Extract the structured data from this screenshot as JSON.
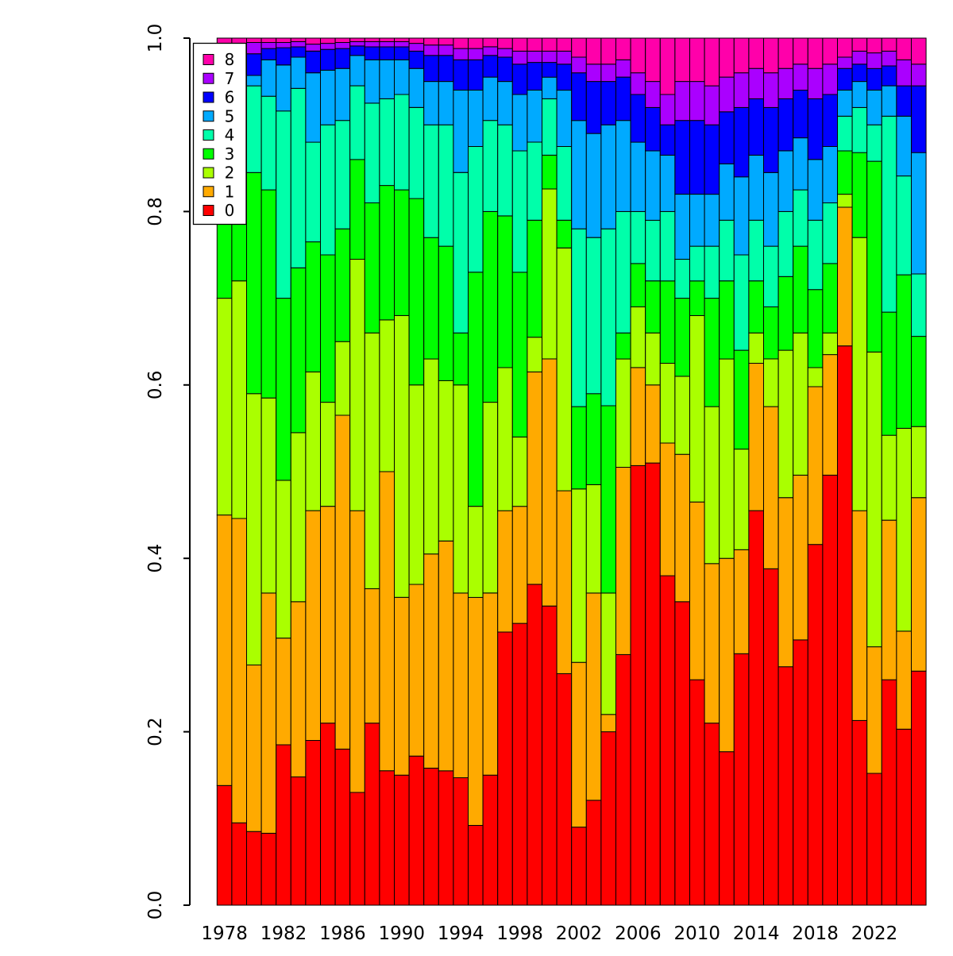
{
  "figure": {
    "background": "#FFFFFF"
  },
  "chart_data": {
    "type": "bar",
    "stacked": true,
    "normalized": true,
    "title": "",
    "xlabel": "",
    "ylabel": "",
    "ylim": [
      0.0,
      1.0
    ],
    "grid": false,
    "y_ticks": [
      {
        "value": 0.0,
        "label": "0.0"
      },
      {
        "value": 0.2,
        "label": "0.2"
      },
      {
        "value": 0.4,
        "label": "0.4"
      },
      {
        "value": 0.6,
        "label": "0.6"
      },
      {
        "value": 0.8,
        "label": "0.8"
      },
      {
        "value": 1.0,
        "label": "1.0"
      }
    ],
    "x_tick_labels": [
      "1978",
      "1982",
      "1986",
      "1990",
      "1994",
      "1998",
      "2002",
      "2006",
      "2010",
      "2014",
      "2018",
      "2022"
    ],
    "x_tick_years": [
      1978,
      1982,
      1986,
      1990,
      1994,
      1998,
      2002,
      2006,
      2010,
      2014,
      2018,
      2022
    ],
    "legend": {
      "position": "top-left",
      "entries": [
        {
          "label": "8",
          "color": "#FF00AA"
        },
        {
          "label": "7",
          "color": "#AA00FF"
        },
        {
          "label": "6",
          "color": "#0000FF"
        },
        {
          "label": "5",
          "color": "#00AAFF"
        },
        {
          "label": "4",
          "color": "#00FFAA"
        },
        {
          "label": "3",
          "color": "#00FF00"
        },
        {
          "label": "2",
          "color": "#AAFF00"
        },
        {
          "label": "1",
          "color": "#FFAA00"
        },
        {
          "label": "0",
          "color": "#FF0000"
        }
      ]
    },
    "series_order_bottom_to_top": [
      "0",
      "1",
      "2",
      "3",
      "4",
      "5",
      "6",
      "7",
      "8"
    ],
    "series_colors_bottom_to_top": [
      "#FF0000",
      "#FFAA00",
      "#AAFF00",
      "#00FF00",
      "#00FFAA",
      "#00AAFF",
      "#0000FF",
      "#AA00FF",
      "#FF00AA"
    ],
    "bar_outline_color": "#000000",
    "years": [
      1978,
      1979,
      1980,
      1981,
      1982,
      1983,
      1984,
      1985,
      1986,
      1987,
      1988,
      1989,
      1990,
      1991,
      1992,
      1993,
      1994,
      1995,
      1996,
      1997,
      1998,
      1999,
      2000,
      2001,
      2002,
      2003,
      2004,
      2005,
      2006,
      2007,
      2008,
      2009,
      2010,
      2011,
      2012,
      2013,
      2014,
      2015,
      2016,
      2017,
      2018,
      2019,
      2020,
      2021,
      2022,
      2023,
      2024,
      2025
    ],
    "cumulative_note": "For each year: cumulative stacked proportion boundaries (top of categories 0..7, bottom-to-top); top of category 8 = 1.0; segment value = boundary[i] - boundary[i-1].",
    "cumulative": [
      [
        0.138,
        0.45,
        0.7,
        0.88,
        0.95,
        0.972,
        0.988,
        0.994
      ],
      [
        0.095,
        0.446,
        0.72,
        0.88,
        0.95,
        0.972,
        0.988,
        0.994
      ],
      [
        0.085,
        0.277,
        0.59,
        0.845,
        0.945,
        0.957,
        0.982,
        0.995
      ],
      [
        0.083,
        0.36,
        0.585,
        0.825,
        0.933,
        0.975,
        0.988,
        0.995
      ],
      [
        0.185,
        0.308,
        0.49,
        0.7,
        0.916,
        0.969,
        0.989,
        0.995
      ],
      [
        0.148,
        0.35,
        0.545,
        0.735,
        0.942,
        0.978,
        0.99,
        0.996
      ],
      [
        0.19,
        0.455,
        0.615,
        0.765,
        0.88,
        0.96,
        0.985,
        0.993
      ],
      [
        0.21,
        0.46,
        0.58,
        0.75,
        0.9,
        0.963,
        0.987,
        0.994
      ],
      [
        0.18,
        0.565,
        0.65,
        0.78,
        0.905,
        0.965,
        0.988,
        0.995
      ],
      [
        0.13,
        0.455,
        0.745,
        0.86,
        0.945,
        0.98,
        0.991,
        0.996
      ],
      [
        0.21,
        0.365,
        0.66,
        0.81,
        0.925,
        0.975,
        0.99,
        0.996
      ],
      [
        0.155,
        0.5,
        0.675,
        0.83,
        0.93,
        0.975,
        0.99,
        0.996
      ],
      [
        0.15,
        0.355,
        0.68,
        0.825,
        0.935,
        0.975,
        0.99,
        0.996
      ],
      [
        0.172,
        0.37,
        0.6,
        0.815,
        0.92,
        0.965,
        0.985,
        0.994
      ],
      [
        0.158,
        0.405,
        0.63,
        0.77,
        0.9,
        0.95,
        0.98,
        0.992
      ],
      [
        0.155,
        0.42,
        0.605,
        0.76,
        0.9,
        0.95,
        0.98,
        0.992
      ],
      [
        0.147,
        0.36,
        0.6,
        0.66,
        0.845,
        0.94,
        0.975,
        0.988
      ],
      [
        0.092,
        0.355,
        0.46,
        0.73,
        0.875,
        0.94,
        0.975,
        0.988
      ],
      [
        0.15,
        0.36,
        0.58,
        0.8,
        0.905,
        0.955,
        0.98,
        0.99
      ],
      [
        0.315,
        0.455,
        0.62,
        0.795,
        0.9,
        0.95,
        0.978,
        0.988
      ],
      [
        0.325,
        0.46,
        0.54,
        0.73,
        0.87,
        0.935,
        0.97,
        0.985
      ],
      [
        0.37,
        0.615,
        0.655,
        0.79,
        0.88,
        0.94,
        0.972,
        0.985
      ],
      [
        0.345,
        0.63,
        0.826,
        0.865,
        0.93,
        0.955,
        0.972,
        0.985
      ],
      [
        0.267,
        0.478,
        0.758,
        0.79,
        0.875,
        0.94,
        0.97,
        0.985
      ],
      [
        0.09,
        0.28,
        0.48,
        0.575,
        0.78,
        0.905,
        0.96,
        0.978
      ],
      [
        0.121,
        0.36,
        0.485,
        0.59,
        0.77,
        0.89,
        0.95,
        0.97
      ],
      [
        0.2,
        0.22,
        0.36,
        0.576,
        0.78,
        0.9,
        0.95,
        0.97
      ],
      [
        0.289,
        0.505,
        0.63,
        0.66,
        0.8,
        0.905,
        0.955,
        0.975
      ],
      [
        0.507,
        0.62,
        0.69,
        0.74,
        0.8,
        0.88,
        0.935,
        0.96
      ],
      [
        0.51,
        0.6,
        0.66,
        0.72,
        0.79,
        0.87,
        0.92,
        0.95
      ],
      [
        0.38,
        0.533,
        0.625,
        0.72,
        0.8,
        0.865,
        0.9,
        0.935
      ],
      [
        0.35,
        0.52,
        0.61,
        0.7,
        0.745,
        0.82,
        0.905,
        0.95
      ],
      [
        0.26,
        0.465,
        0.68,
        0.72,
        0.76,
        0.82,
        0.905,
        0.95
      ],
      [
        0.21,
        0.394,
        0.575,
        0.7,
        0.76,
        0.82,
        0.9,
        0.945
      ],
      [
        0.177,
        0.4,
        0.63,
        0.72,
        0.79,
        0.855,
        0.915,
        0.955
      ],
      [
        0.29,
        0.41,
        0.526,
        0.64,
        0.75,
        0.84,
        0.92,
        0.96
      ],
      [
        0.455,
        0.625,
        0.66,
        0.72,
        0.79,
        0.865,
        0.93,
        0.965
      ],
      [
        0.388,
        0.575,
        0.63,
        0.69,
        0.76,
        0.845,
        0.92,
        0.96
      ],
      [
        0.275,
        0.47,
        0.64,
        0.725,
        0.8,
        0.87,
        0.93,
        0.965
      ],
      [
        0.306,
        0.496,
        0.66,
        0.76,
        0.825,
        0.885,
        0.94,
        0.97
      ],
      [
        0.416,
        0.598,
        0.62,
        0.71,
        0.79,
        0.86,
        0.93,
        0.965
      ],
      [
        0.496,
        0.635,
        0.66,
        0.74,
        0.81,
        0.875,
        0.935,
        0.97
      ],
      [
        0.645,
        0.805,
        0.82,
        0.87,
        0.91,
        0.94,
        0.965,
        0.978
      ],
      [
        0.213,
        0.455,
        0.77,
        0.868,
        0.92,
        0.95,
        0.97,
        0.985
      ],
      [
        0.152,
        0.298,
        0.638,
        0.858,
        0.9,
        0.94,
        0.965,
        0.983
      ],
      [
        0.26,
        0.444,
        0.542,
        0.684,
        0.91,
        0.945,
        0.968,
        0.985
      ],
      [
        0.203,
        0.316,
        0.55,
        0.727,
        0.841,
        0.91,
        0.945,
        0.975
      ],
      [
        0.27,
        0.47,
        0.552,
        0.656,
        0.728,
        0.868,
        0.945,
        0.97
      ]
    ]
  }
}
